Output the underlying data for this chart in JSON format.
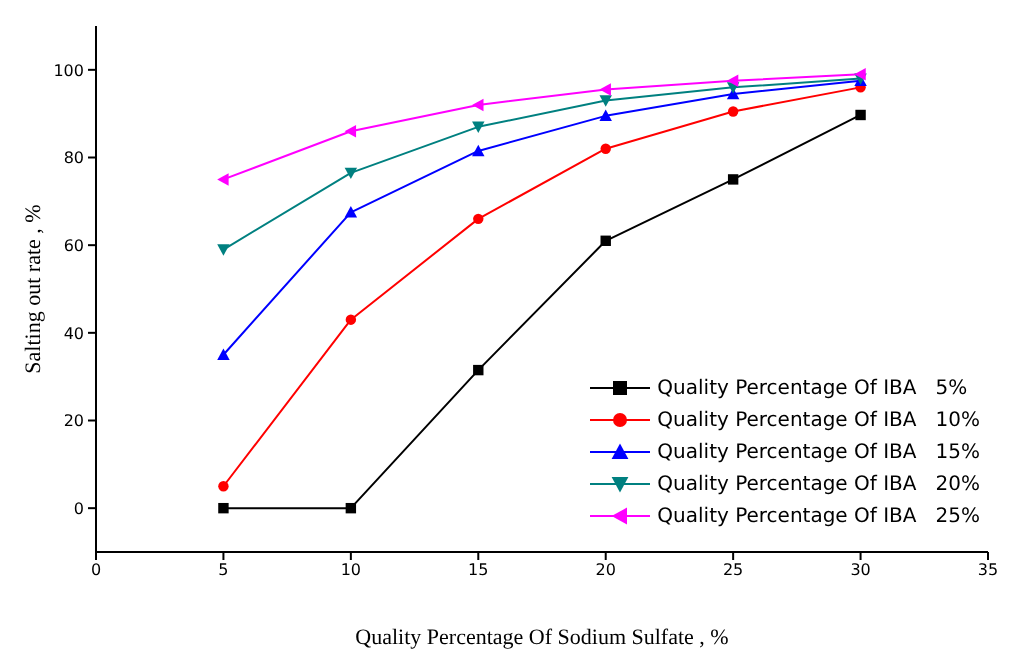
{
  "chart_data": {
    "type": "line",
    "xlabel": "Quality Percentage Of Sodium Sulfate , %",
    "ylabel": "Salting out rate , %",
    "x": [
      5,
      10,
      15,
      20,
      25,
      30
    ],
    "series": [
      {
        "name": "Quality Percentage Of IBA   5%",
        "color": "#000000",
        "marker": "square",
        "values": [
          0,
          0,
          31.5,
          61,
          75,
          89.7
        ]
      },
      {
        "name": "Quality Percentage Of IBA   10%",
        "color": "#ff0000",
        "marker": "circle",
        "values": [
          5,
          43,
          66,
          82,
          90.5,
          96
        ]
      },
      {
        "name": "Quality Percentage Of IBA   15%",
        "color": "#0000ff",
        "marker": "triangle",
        "values": [
          35,
          67.5,
          81.5,
          89.5,
          94.5,
          97.5
        ]
      },
      {
        "name": "Quality Percentage Of IBA   20%",
        "color": "#008080",
        "marker": "triangle-down",
        "values": [
          59,
          76.5,
          87,
          93,
          96,
          98
        ]
      },
      {
        "name": "Quality Percentage Of IBA   25%",
        "color": "#ff00ff",
        "marker": "triangle-left",
        "values": [
          75,
          86,
          92,
          95.5,
          97.5,
          99
        ]
      }
    ],
    "xlim": [
      0,
      35
    ],
    "xticks": [
      0,
      5,
      10,
      15,
      20,
      25,
      30,
      35
    ],
    "ylim": [
      -10,
      110
    ],
    "yticks": [
      0,
      20,
      40,
      60,
      80,
      100
    ],
    "grid": false,
    "legend": "bottom right",
    "line_style": "solid"
  }
}
